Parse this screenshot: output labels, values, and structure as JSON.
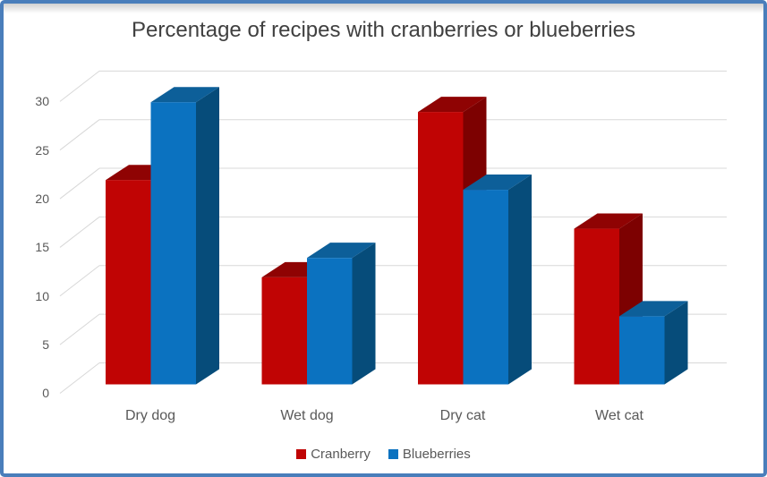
{
  "window": {
    "border_color": "#4A7EBB",
    "background_color": "#FFFFFF"
  },
  "chart_data": {
    "type": "bar",
    "subtype": "3d-clustered-column",
    "title": "Percentage of recipes with cranberries or blueberries",
    "title_color": "#404040",
    "categories": [
      "Dry dog",
      "Wet dog",
      "Dry cat",
      "Wet cat"
    ],
    "series": [
      {
        "name": "Cranberry",
        "values": [
          21,
          11,
          28,
          16
        ],
        "color": "#C00404",
        "color_top": "#8F0303",
        "color_side": "#7D0101"
      },
      {
        "name": "Blueberries",
        "values": [
          29,
          13,
          20,
          7
        ],
        "color": "#0B72C0",
        "color_top": "#0D5F99",
        "color_side": "#064C7A"
      }
    ],
    "xlabel": "",
    "ylabel": "",
    "ylim": [
      0,
      30
    ],
    "yticks": [
      0,
      5,
      10,
      15,
      20,
      25,
      30
    ],
    "grid": true,
    "gridline_color": "#D8D8D8",
    "axis_text_color": "#595959",
    "legend_position": "bottom"
  }
}
